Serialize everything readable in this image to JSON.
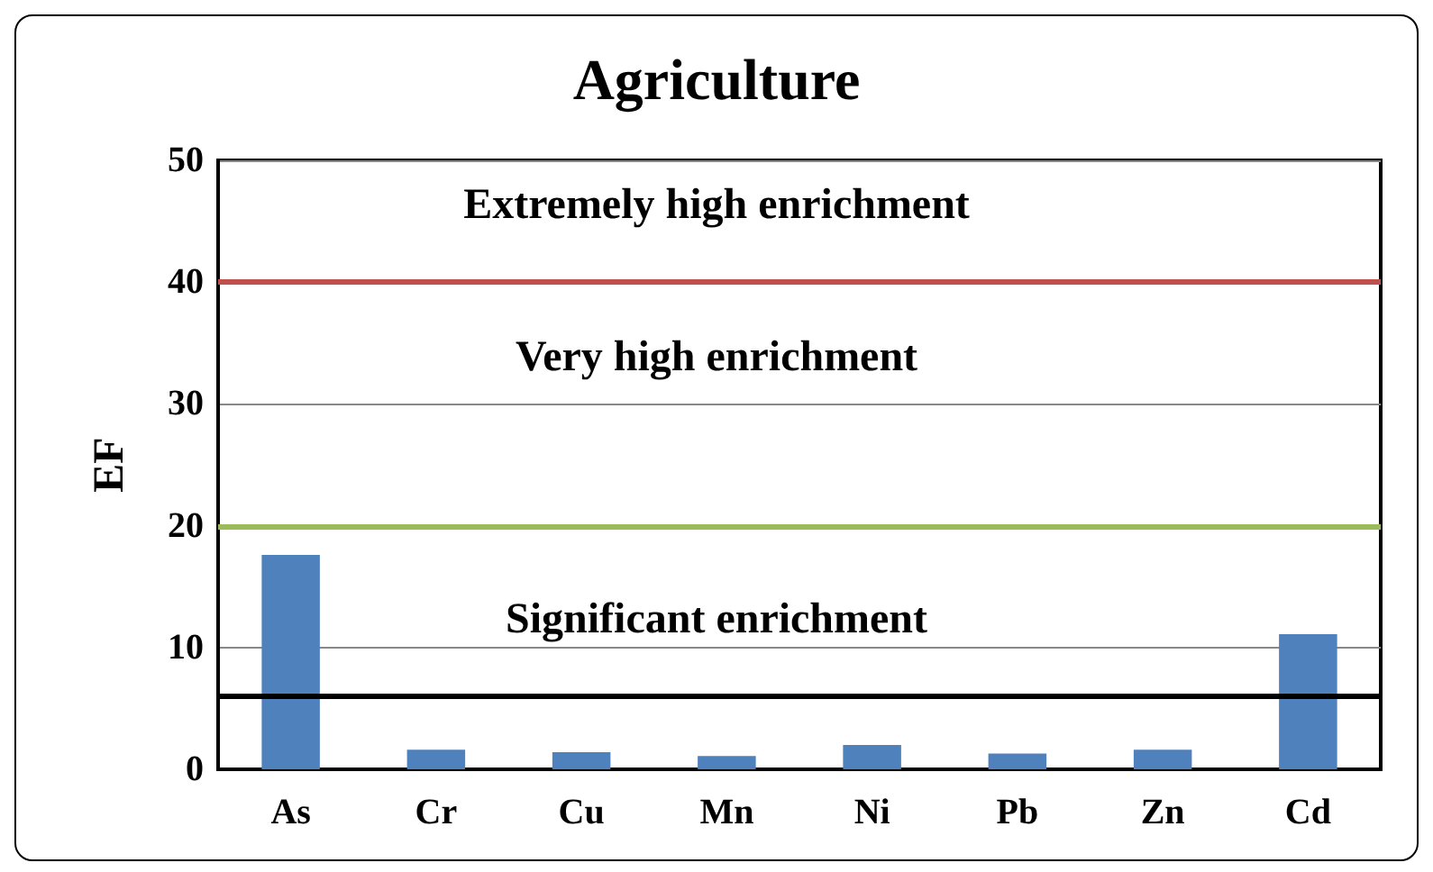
{
  "chart_data": {
    "type": "bar",
    "title": "Agriculture",
    "ylabel": "EF",
    "categories": [
      "As",
      "Cr",
      "Cu",
      "Mn",
      "Ni",
      "Pb",
      "Zn",
      "Cd"
    ],
    "values": [
      17.6,
      1.6,
      1.4,
      1.1,
      2.0,
      1.3,
      1.6,
      11.1
    ],
    "color": "#4f81bd",
    "ylim": [
      0,
      50
    ],
    "yticks": [
      0,
      10,
      20,
      30,
      40,
      50
    ],
    "grid": "y",
    "ref_lines": [
      {
        "axis": "y",
        "value": 40,
        "color": "#c0504d"
      },
      {
        "axis": "y",
        "value": 20,
        "color": "#9bbb59"
      },
      {
        "axis": "y",
        "value": 6,
        "color": "#000000"
      }
    ],
    "annotations": [
      "Extremely high enrichment",
      "Very high enrichment",
      "Significant enrichment"
    ]
  }
}
